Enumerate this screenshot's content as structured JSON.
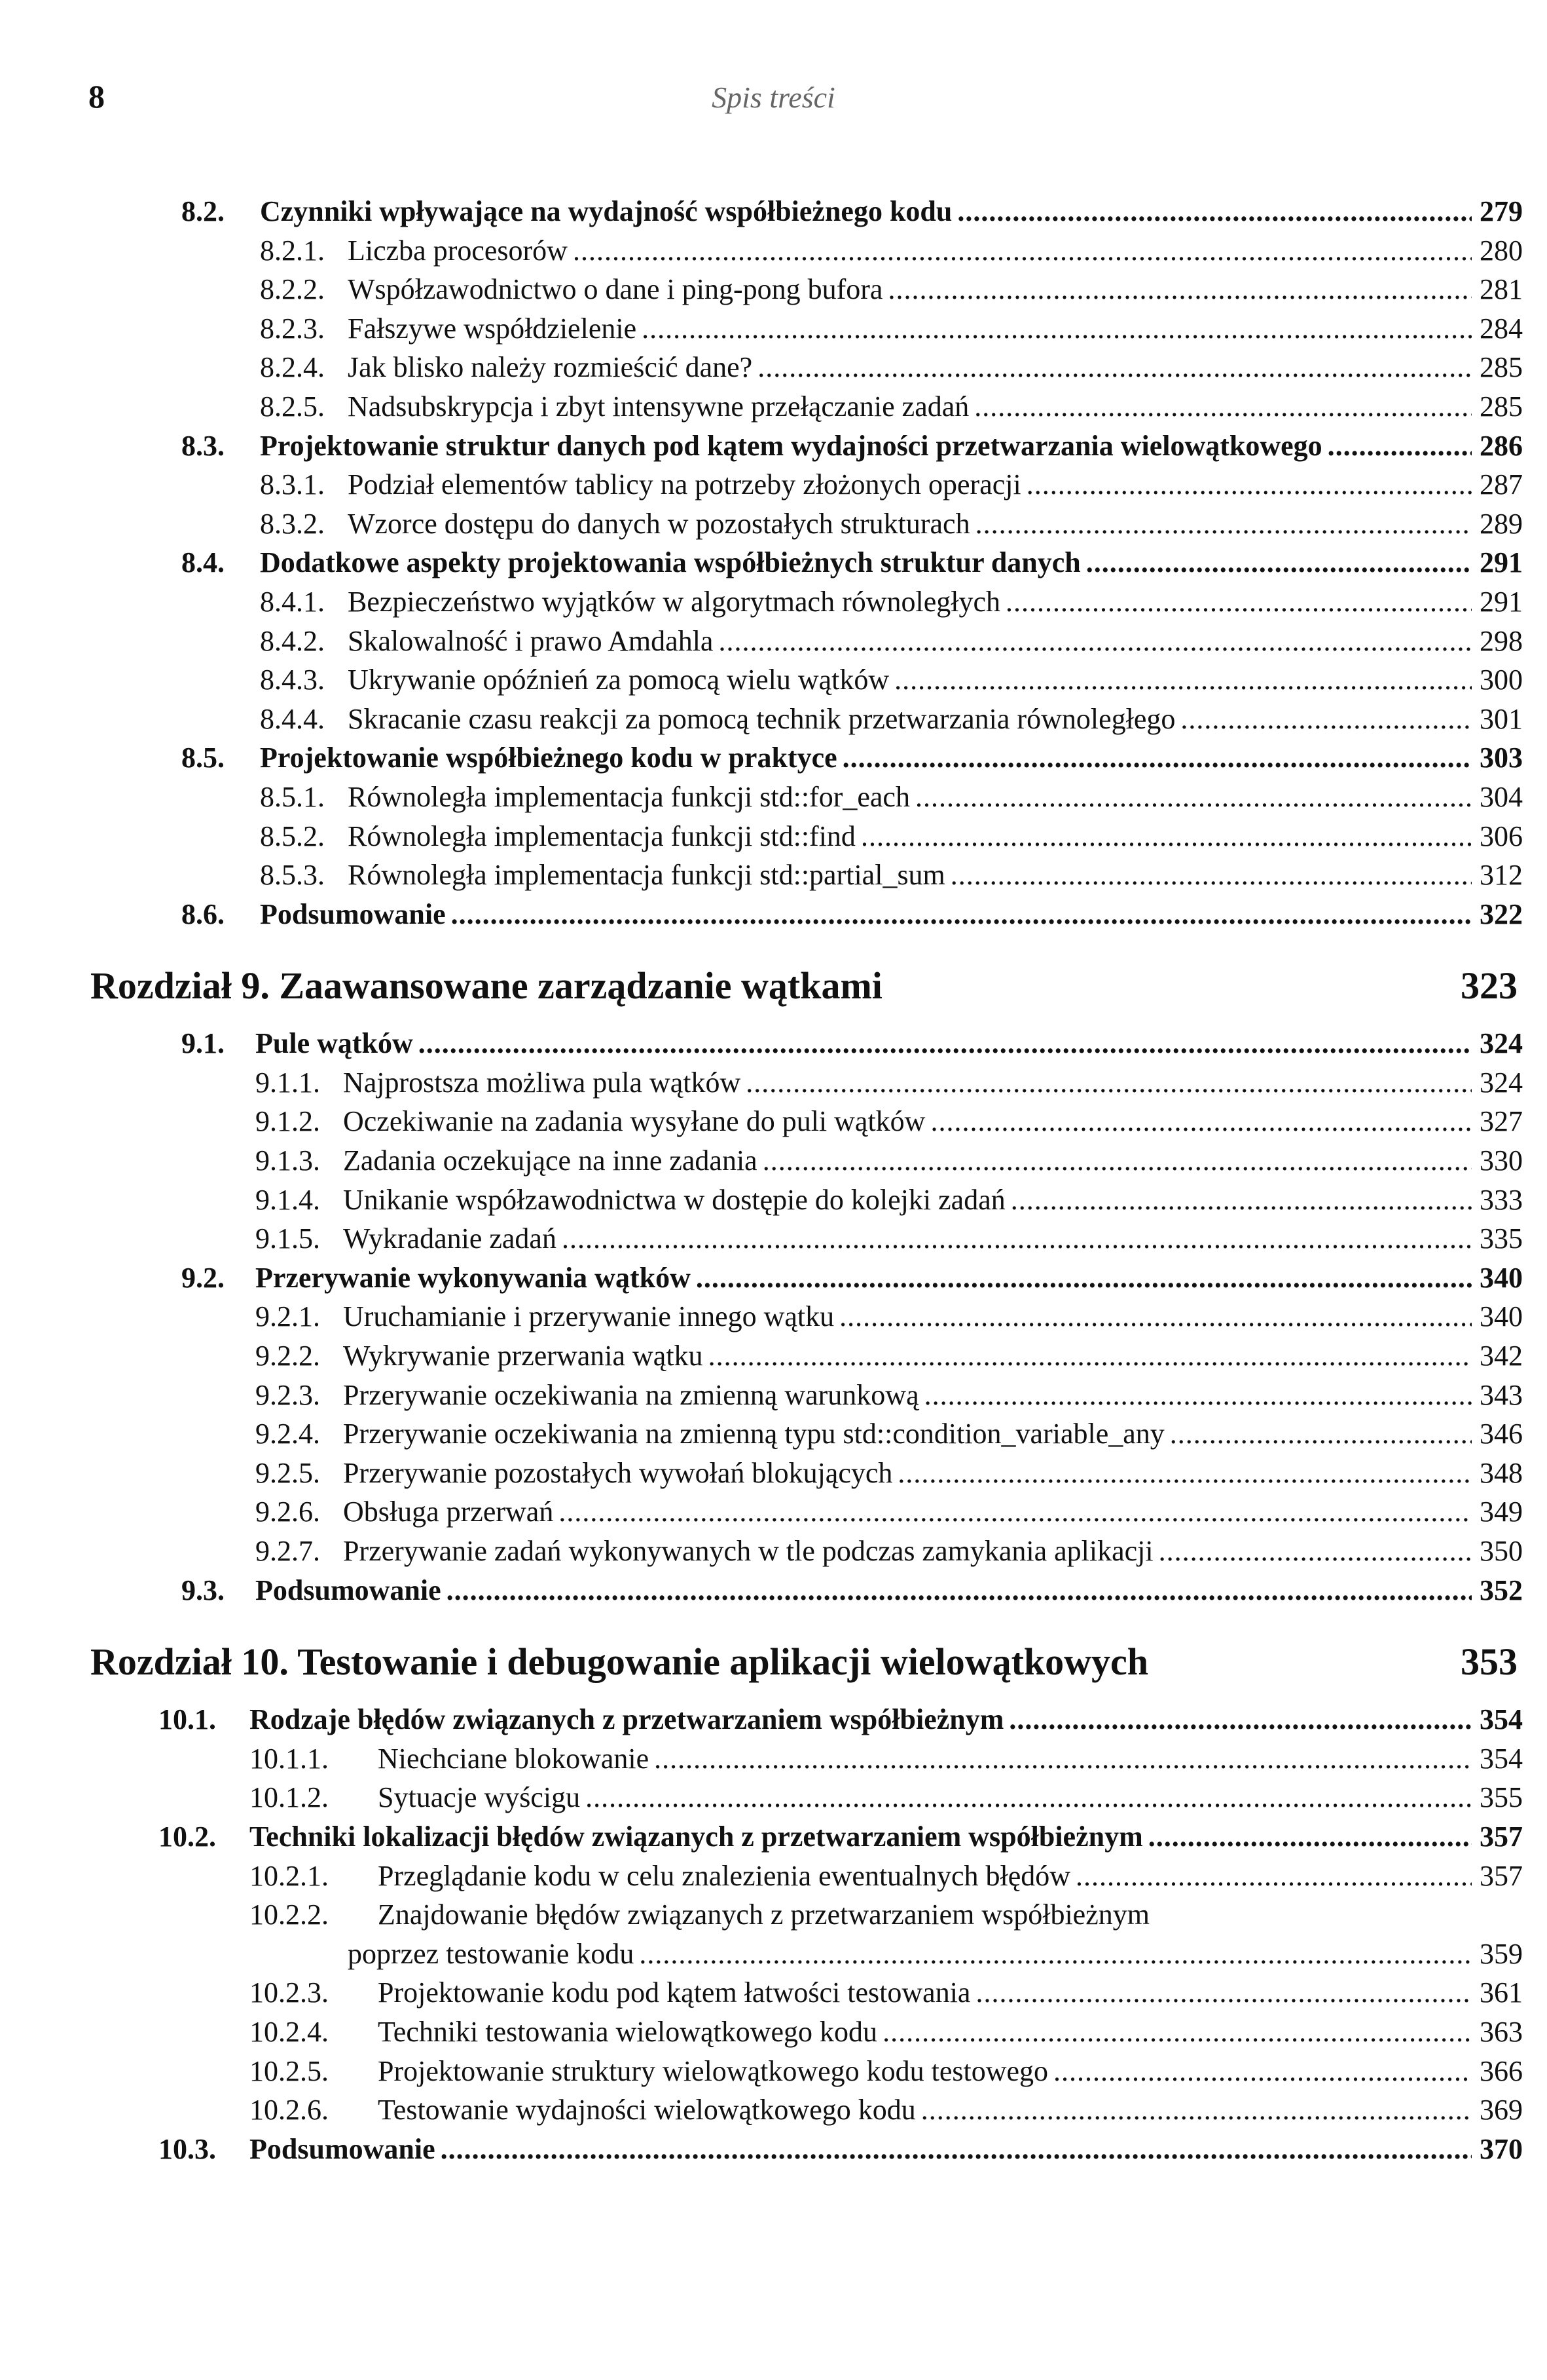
{
  "header": {
    "page_number": "8",
    "running_title": "Spis treści"
  },
  "sections": [
    {
      "type": "group",
      "numbering": "ch8",
      "entries": [
        {
          "num": "8.2.",
          "title": "Czynniki wpływające na wydajność współbieżnego kodu",
          "page": "279",
          "level": 2
        },
        {
          "num": "8.2.1.",
          "title": "Liczba procesorów",
          "page": "280",
          "level": 3
        },
        {
          "num": "8.2.2.",
          "title": "Współzawodnictwo o dane i ping-pong bufora",
          "page": "281",
          "level": 3
        },
        {
          "num": "8.2.3.",
          "title": "Fałszywe współdzielenie",
          "page": "284",
          "level": 3
        },
        {
          "num": "8.2.4.",
          "title": "Jak blisko należy rozmieścić dane?",
          "page": "285",
          "level": 3
        },
        {
          "num": "8.2.5.",
          "title": "Nadsubskrypcja i zbyt intensywne przełączanie zadań",
          "page": "285",
          "level": 3
        },
        {
          "num": "8.3.",
          "title": "Projektowanie struktur danych pod kątem wydajności przetwarzania wielowątkowego",
          "page": "286",
          "level": 2
        },
        {
          "num": "8.3.1.",
          "title": "Podział elementów tablicy na potrzeby złożonych operacji",
          "page": "287",
          "level": 3
        },
        {
          "num": "8.3.2.",
          "title": "Wzorce dostępu do danych w pozostałych strukturach",
          "page": "289",
          "level": 3
        },
        {
          "num": "8.4.",
          "title": "Dodatkowe aspekty projektowania współbieżnych struktur danych",
          "page": "291",
          "level": 2
        },
        {
          "num": "8.4.1.",
          "title": "Bezpieczeństwo wyjątków w algorytmach równoległych",
          "page": "291",
          "level": 3
        },
        {
          "num": "8.4.2.",
          "title": "Skalowalność i prawo Amdahla",
          "page": "298",
          "level": 3
        },
        {
          "num": "8.4.3.",
          "title": "Ukrywanie opóźnień za pomocą wielu wątków",
          "page": "300",
          "level": 3
        },
        {
          "num": "8.4.4.",
          "title": "Skracanie czasu reakcji za pomocą technik przetwarzania równoległego",
          "page": "301",
          "level": 3
        },
        {
          "num": "8.5.",
          "title": "Projektowanie współbieżnego kodu w praktyce",
          "page": "303",
          "level": 2
        },
        {
          "num": "8.5.1.",
          "title": "Równoległa implementacja funkcji std::for_each",
          "page": "304",
          "level": 3
        },
        {
          "num": "8.5.2.",
          "title": "Równoległa implementacja funkcji std::find",
          "page": "306",
          "level": 3
        },
        {
          "num": "8.5.3.",
          "title": "Równoległa implementacja funkcji std::partial_sum",
          "page": "312",
          "level": 3
        },
        {
          "num": "8.6.",
          "title": "Podsumowanie",
          "page": "322",
          "level": 2
        }
      ]
    },
    {
      "type": "chapter",
      "title": "Rozdział 9. Zaawansowane zarządzanie wątkami",
      "page": "323"
    },
    {
      "type": "group",
      "numbering": "ch9",
      "entries": [
        {
          "num": "9.1.",
          "title": "Pule wątków",
          "page": "324",
          "level": 2
        },
        {
          "num": "9.1.1.",
          "title": "Najprostsza możliwa pula wątków",
          "page": "324",
          "level": 3
        },
        {
          "num": "9.1.2.",
          "title": "Oczekiwanie na zadania wysyłane do puli wątków",
          "page": "327",
          "level": 3
        },
        {
          "num": "9.1.3.",
          "title": "Zadania oczekujące na inne zadania",
          "page": "330",
          "level": 3
        },
        {
          "num": "9.1.4.",
          "title": "Unikanie współzawodnictwa w dostępie do kolejki zadań",
          "page": "333",
          "level": 3
        },
        {
          "num": "9.1.5.",
          "title": "Wykradanie zadań",
          "page": "335",
          "level": 3
        },
        {
          "num": "9.2.",
          "title": "Przerywanie wykonywania wątków",
          "page": "340",
          "level": 2
        },
        {
          "num": "9.2.1.",
          "title": "Uruchamianie i przerywanie innego wątku",
          "page": "340",
          "level": 3
        },
        {
          "num": "9.2.2.",
          "title": "Wykrywanie przerwania wątku",
          "page": "342",
          "level": 3
        },
        {
          "num": "9.2.3.",
          "title": "Przerywanie oczekiwania na zmienną warunkową",
          "page": "343",
          "level": 3
        },
        {
          "num": "9.2.4.",
          "title": "Przerywanie oczekiwania na zmienną typu std::condition_variable_any",
          "page": "346",
          "level": 3
        },
        {
          "num": "9.2.5.",
          "title": "Przerywanie pozostałych wywołań blokujących",
          "page": "348",
          "level": 3
        },
        {
          "num": "9.2.6.",
          "title": "Obsługa przerwań",
          "page": "349",
          "level": 3
        },
        {
          "num": "9.2.7.",
          "title": "Przerywanie zadań wykonywanych w tle podczas zamykania aplikacji",
          "page": "350",
          "level": 3
        },
        {
          "num": "9.3.",
          "title": "Podsumowanie",
          "page": "352",
          "level": 2
        }
      ]
    },
    {
      "type": "chapter",
      "title": "Rozdział 10. Testowanie i debugowanie aplikacji wielowątkowych",
      "page": "353"
    },
    {
      "type": "group",
      "numbering": "ch10",
      "entries": [
        {
          "num": "10.1.",
          "title": "Rodzaje błędów związanych z przetwarzaniem współbieżnym",
          "page": "354",
          "level": 2
        },
        {
          "num": "10.1.1.",
          "title": "Niechciane blokowanie",
          "page": "354",
          "level": 3
        },
        {
          "num": "10.1.2.",
          "title": "Sytuacje wyścigu",
          "page": "355",
          "level": 3
        },
        {
          "num": "10.2.",
          "title": "Techniki lokalizacji błędów związanych z przetwarzaniem współbieżnym",
          "page": "357",
          "level": 2
        },
        {
          "num": "10.2.1.",
          "title": "Przeglądanie kodu w celu znalezienia ewentualnych błędów",
          "page": "357",
          "level": 3
        },
        {
          "num": "10.2.2.",
          "title": "Znajdowanie błędów związanych z przetwarzaniem współbieżnym",
          "title_cont": "poprzez testowanie kodu",
          "page": "359",
          "level": 3
        },
        {
          "num": "10.2.3.",
          "title": "Projektowanie kodu pod kątem łatwości testowania",
          "page": "361",
          "level": 3
        },
        {
          "num": "10.2.4.",
          "title": "Techniki testowania wielowątkowego kodu",
          "page": "363",
          "level": 3
        },
        {
          "num": "10.2.5.",
          "title": "Projektowanie struktury wielowątkowego kodu testowego",
          "page": "366",
          "level": 3
        },
        {
          "num": "10.2.6.",
          "title": "Testowanie wydajności wielowątkowego kodu",
          "page": "369",
          "level": 3
        },
        {
          "num": "10.3.",
          "title": "Podsumowanie",
          "page": "370",
          "level": 2
        }
      ]
    }
  ]
}
